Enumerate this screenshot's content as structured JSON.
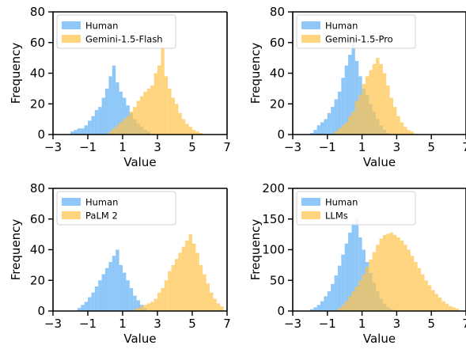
{
  "colors": {
    "human": "#63b1f5",
    "model": "#ffc34d",
    "overlap": "#b7a87f"
  },
  "chart_data": [
    {
      "type": "histogram",
      "xlabel": "Value",
      "ylabel": "Frequency",
      "xlim": [
        -3,
        7
      ],
      "ylim": [
        0,
        80
      ],
      "xticks": [
        -3,
        -1,
        1,
        3,
        5,
        7
      ],
      "yticks": [
        0,
        20,
        40,
        60,
        80
      ],
      "legend": "top-left",
      "series": [
        {
          "name": "Human",
          "color_key": "human",
          "bins": [
            [
              -2.0,
              2
            ],
            [
              -1.8,
              3
            ],
            [
              -1.6,
              4
            ],
            [
              -1.4,
              4
            ],
            [
              -1.2,
              6
            ],
            [
              -1.0,
              9
            ],
            [
              -0.8,
              12
            ],
            [
              -0.6,
              16
            ],
            [
              -0.4,
              18
            ],
            [
              -0.2,
              24
            ],
            [
              0.0,
              30
            ],
            [
              0.2,
              38
            ],
            [
              0.4,
              45
            ],
            [
              0.6,
              34
            ],
            [
              0.8,
              28
            ],
            [
              1.0,
              24
            ],
            [
              1.2,
              19
            ],
            [
              1.4,
              14
            ],
            [
              1.6,
              10
            ],
            [
              1.8,
              7
            ],
            [
              2.0,
              5
            ],
            [
              2.2,
              3
            ],
            [
              2.4,
              2
            ]
          ]
        },
        {
          "name": "Gemini-1.5-Flash",
          "color_key": "model",
          "bins": [
            [
              0.2,
              2
            ],
            [
              0.4,
              4
            ],
            [
              0.6,
              6
            ],
            [
              0.8,
              8
            ],
            [
              1.0,
              10
            ],
            [
              1.2,
              12
            ],
            [
              1.4,
              15
            ],
            [
              1.6,
              18
            ],
            [
              1.8,
              22
            ],
            [
              2.0,
              25
            ],
            [
              2.2,
              28
            ],
            [
              2.4,
              30
            ],
            [
              2.6,
              32
            ],
            [
              2.8,
              40
            ],
            [
              3.0,
              45
            ],
            [
              3.2,
              58
            ],
            [
              3.4,
              38
            ],
            [
              3.6,
              30
            ],
            [
              3.8,
              24
            ],
            [
              4.0,
              20
            ],
            [
              4.2,
              14
            ],
            [
              4.4,
              10
            ],
            [
              4.6,
              7
            ],
            [
              4.8,
              5
            ],
            [
              5.0,
              3
            ],
            [
              5.2,
              2
            ],
            [
              5.4,
              1
            ]
          ]
        }
      ]
    },
    {
      "type": "histogram",
      "xlabel": "Value",
      "ylabel": "Frequency",
      "xlim": [
        -3,
        7
      ],
      "ylim": [
        0,
        80
      ],
      "xticks": [
        -3,
        -1,
        1,
        3,
        5,
        7
      ],
      "yticks": [
        0,
        20,
        40,
        60,
        80
      ],
      "legend": "top-left",
      "series": [
        {
          "name": "Human",
          "color_key": "human",
          "bins": [
            [
              -2.0,
              1
            ],
            [
              -1.8,
              3
            ],
            [
              -1.6,
              6
            ],
            [
              -1.4,
              8
            ],
            [
              -1.2,
              10
            ],
            [
              -1.0,
              14
            ],
            [
              -0.8,
              18
            ],
            [
              -0.6,
              23
            ],
            [
              -0.4,
              28
            ],
            [
              -0.2,
              37
            ],
            [
              0.0,
              45
            ],
            [
              0.2,
              52
            ],
            [
              0.4,
              60
            ],
            [
              0.6,
              48
            ],
            [
              0.8,
              38
            ],
            [
              1.0,
              30
            ],
            [
              1.2,
              26
            ],
            [
              1.4,
              20
            ],
            [
              1.6,
              15
            ],
            [
              1.8,
              10
            ],
            [
              2.0,
              6
            ],
            [
              2.2,
              3
            ],
            [
              2.4,
              1
            ]
          ]
        },
        {
          "name": "Gemini-1.5-Pro",
          "color_key": "model",
          "bins": [
            [
              -0.6,
              2
            ],
            [
              -0.4,
              4
            ],
            [
              -0.2,
              6
            ],
            [
              0.0,
              8
            ],
            [
              0.2,
              12
            ],
            [
              0.4,
              15
            ],
            [
              0.6,
              22
            ],
            [
              0.8,
              26
            ],
            [
              1.0,
              33
            ],
            [
              1.2,
              38
            ],
            [
              1.4,
              42
            ],
            [
              1.6,
              46
            ],
            [
              1.8,
              50
            ],
            [
              2.0,
              46
            ],
            [
              2.2,
              40
            ],
            [
              2.4,
              32
            ],
            [
              2.6,
              24
            ],
            [
              2.8,
              18
            ],
            [
              3.0,
              12
            ],
            [
              3.2,
              8
            ],
            [
              3.4,
              5
            ],
            [
              3.6,
              3
            ],
            [
              3.8,
              2
            ]
          ]
        }
      ]
    },
    {
      "type": "histogram",
      "xlabel": "Value",
      "ylabel": "Frequency",
      "xlim": [
        -3,
        7
      ],
      "ylim": [
        0,
        80
      ],
      "xticks": [
        -3,
        -1,
        1,
        3,
        5,
        7
      ],
      "yticks": [
        0,
        20,
        40,
        60,
        80
      ],
      "legend": "top-left",
      "series": [
        {
          "name": "Human",
          "color_key": "human",
          "bins": [
            [
              -1.6,
              2
            ],
            [
              -1.4,
              4
            ],
            [
              -1.2,
              6
            ],
            [
              -1.0,
              9
            ],
            [
              -0.8,
              12
            ],
            [
              -0.6,
              16
            ],
            [
              -0.4,
              20
            ],
            [
              -0.2,
              24
            ],
            [
              0.0,
              28
            ],
            [
              0.2,
              32
            ],
            [
              0.4,
              36
            ],
            [
              0.6,
              40
            ],
            [
              0.8,
              30
            ],
            [
              1.0,
              25
            ],
            [
              1.2,
              20
            ],
            [
              1.4,
              15
            ],
            [
              1.6,
              10
            ],
            [
              1.8,
              7
            ],
            [
              2.0,
              4
            ],
            [
              2.2,
              2
            ]
          ]
        },
        {
          "name": "PaLM 2",
          "color_key": "model",
          "bins": [
            [
              1.6,
              1
            ],
            [
              1.8,
              2
            ],
            [
              2.0,
              3
            ],
            [
              2.2,
              4
            ],
            [
              2.4,
              5
            ],
            [
              2.6,
              6
            ],
            [
              2.8,
              8
            ],
            [
              3.0,
              12
            ],
            [
              3.2,
              15
            ],
            [
              3.4,
              20
            ],
            [
              3.6,
              26
            ],
            [
              3.8,
              30
            ],
            [
              4.0,
              34
            ],
            [
              4.2,
              38
            ],
            [
              4.4,
              42
            ],
            [
              4.6,
              46
            ],
            [
              4.8,
              50
            ],
            [
              5.0,
              44
            ],
            [
              5.2,
              38
            ],
            [
              5.4,
              30
            ],
            [
              5.6,
              24
            ],
            [
              5.8,
              18
            ],
            [
              6.0,
              12
            ],
            [
              6.2,
              8
            ],
            [
              6.4,
              5
            ],
            [
              6.6,
              3
            ]
          ]
        }
      ]
    },
    {
      "type": "histogram",
      "xlabel": "Value",
      "ylabel": "Frequency",
      "xlim": [
        -3,
        7
      ],
      "ylim": [
        0,
        200
      ],
      "xticks": [
        -3,
        -1,
        1,
        3,
        5,
        7
      ],
      "yticks": [
        0,
        50,
        100,
        150,
        200
      ],
      "legend": "top-left",
      "series": [
        {
          "name": "Human",
          "color_key": "human",
          "bins": [
            [
              -2.0,
              3
            ],
            [
              -1.8,
              6
            ],
            [
              -1.6,
              10
            ],
            [
              -1.4,
              16
            ],
            [
              -1.2,
              24
            ],
            [
              -1.0,
              32
            ],
            [
              -0.8,
              44
            ],
            [
              -0.6,
              58
            ],
            [
              -0.4,
              74
            ],
            [
              -0.2,
              92
            ],
            [
              0.0,
              110
            ],
            [
              0.2,
              128
            ],
            [
              0.4,
              142
            ],
            [
              0.6,
              150
            ],
            [
              0.8,
              120
            ],
            [
              1.0,
              100
            ],
            [
              1.2,
              80
            ],
            [
              1.4,
              62
            ],
            [
              1.6,
              46
            ],
            [
              1.8,
              32
            ],
            [
              2.0,
              20
            ],
            [
              2.2,
              12
            ],
            [
              2.4,
              6
            ],
            [
              2.6,
              3
            ]
          ]
        },
        {
          "name": "LLMs",
          "color_key": "model",
          "bins": [
            [
              -0.4,
              5
            ],
            [
              -0.2,
              10
            ],
            [
              0.0,
              16
            ],
            [
              0.2,
              24
            ],
            [
              0.4,
              32
            ],
            [
              0.6,
              40
            ],
            [
              0.8,
              50
            ],
            [
              1.0,
              60
            ],
            [
              1.2,
              72
            ],
            [
              1.4,
              84
            ],
            [
              1.6,
              96
            ],
            [
              1.8,
              108
            ],
            [
              2.0,
              118
            ],
            [
              2.2,
              124
            ],
            [
              2.4,
              126
            ],
            [
              2.6,
              128
            ],
            [
              2.8,
              124
            ],
            [
              3.0,
              120
            ],
            [
              3.2,
              115
            ],
            [
              3.4,
              108
            ],
            [
              3.6,
              100
            ],
            [
              3.8,
              90
            ],
            [
              4.0,
              80
            ],
            [
              4.2,
              70
            ],
            [
              4.4,
              60
            ],
            [
              4.6,
              50
            ],
            [
              4.8,
              42
            ],
            [
              5.0,
              34
            ],
            [
              5.2,
              28
            ],
            [
              5.4,
              22
            ],
            [
              5.6,
              16
            ],
            [
              5.8,
              12
            ],
            [
              6.0,
              8
            ],
            [
              6.2,
              6
            ],
            [
              6.4,
              4
            ]
          ]
        }
      ]
    }
  ]
}
